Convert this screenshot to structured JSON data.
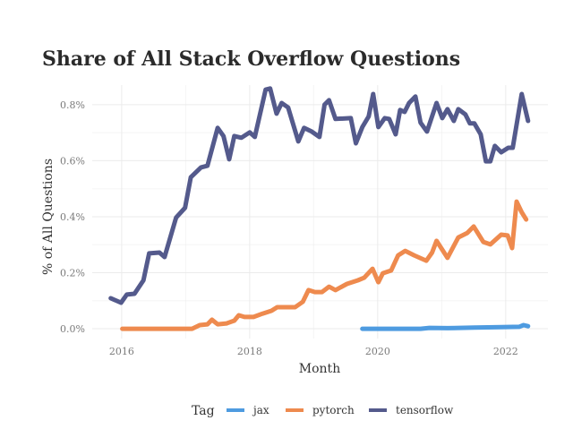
{
  "chart_data": {
    "type": "line",
    "title": "Share of All Stack Overflow Questions",
    "xlabel": "Month",
    "ylabel": "% of All Questions",
    "xlim": [
      2015.54,
      2022.66
    ],
    "ylim": [
      -0.035,
      0.87
    ],
    "x_ticks": [
      {
        "value": 2016,
        "label": "2016"
      },
      {
        "value": 2018,
        "label": "2018"
      },
      {
        "value": 2020,
        "label": "2020"
      },
      {
        "value": 2022,
        "label": "2022"
      }
    ],
    "y_ticks": [
      {
        "value": 0.0,
        "label": "0.0%"
      },
      {
        "value": 0.2,
        "label": "0.2%"
      },
      {
        "value": 0.4,
        "label": "0.4%"
      },
      {
        "value": 0.6,
        "label": "0.6%"
      },
      {
        "value": 0.8,
        "label": "0.8%"
      }
    ],
    "grid": true,
    "legend": {
      "title": "Tag",
      "placement": "bottom"
    },
    "series": [
      {
        "name": "jax",
        "color": "#4e9be0",
        "x": [
          2019.76,
          2020.67,
          2020.81,
          2021.09,
          2021.51,
          2021.93,
          2022.21,
          2022.28,
          2022.35
        ],
        "y": [
          0.0,
          0.0,
          0.003,
          0.002,
          0.004,
          0.006,
          0.007,
          0.013,
          0.009
        ]
      },
      {
        "name": "pytorch",
        "color": "#ee8a4e",
        "x": [
          2016.01,
          2017.1,
          2017.22,
          2017.34,
          2017.41,
          2017.5,
          2017.64,
          2017.76,
          2017.83,
          2017.92,
          2018.06,
          2018.2,
          2018.34,
          2018.43,
          2018.71,
          2018.83,
          2018.92,
          2019.02,
          2019.13,
          2019.24,
          2019.34,
          2019.52,
          2019.69,
          2019.79,
          2019.92,
          2020.01,
          2020.08,
          2020.21,
          2020.32,
          2020.43,
          2020.57,
          2020.76,
          2020.85,
          2020.92,
          2021.09,
          2021.26,
          2021.4,
          2021.5,
          2021.65,
          2021.76,
          2021.93,
          2022.03,
          2022.1,
          2022.17,
          2022.25,
          2022.32
        ],
        "y": [
          0.0,
          0.0,
          0.013,
          0.016,
          0.032,
          0.016,
          0.019,
          0.029,
          0.048,
          0.042,
          0.042,
          0.054,
          0.064,
          0.077,
          0.077,
          0.096,
          0.138,
          0.131,
          0.131,
          0.15,
          0.138,
          0.16,
          0.173,
          0.182,
          0.214,
          0.166,
          0.198,
          0.208,
          0.262,
          0.278,
          0.262,
          0.243,
          0.272,
          0.314,
          0.253,
          0.326,
          0.342,
          0.365,
          0.31,
          0.301,
          0.336,
          0.333,
          0.288,
          0.454,
          0.416,
          0.39
        ]
      },
      {
        "name": "tensorflow",
        "color": "#545a8c",
        "x": [
          2015.83,
          2015.99,
          2016.08,
          2016.2,
          2016.34,
          2016.43,
          2016.59,
          2016.67,
          2016.85,
          2016.99,
          2017.08,
          2017.24,
          2017.34,
          2017.5,
          2017.59,
          2017.68,
          2017.76,
          2017.87,
          2018.0,
          2018.08,
          2018.18,
          2018.25,
          2018.32,
          2018.42,
          2018.5,
          2018.6,
          2018.76,
          2018.85,
          2018.97,
          2019.09,
          2019.17,
          2019.24,
          2019.34,
          2019.58,
          2019.66,
          2019.76,
          2019.86,
          2019.93,
          2020.01,
          2020.11,
          2020.18,
          2020.28,
          2020.35,
          2020.42,
          2020.49,
          2020.59,
          2020.67,
          2020.77,
          2020.92,
          2021.01,
          2021.09,
          2021.19,
          2021.26,
          2021.37,
          2021.44,
          2021.51,
          2021.61,
          2021.69,
          2021.76,
          2021.83,
          2021.93,
          2022.04,
          2022.11,
          2022.25,
          2022.35
        ],
        "y": [
          0.109,
          0.093,
          0.122,
          0.125,
          0.173,
          0.269,
          0.272,
          0.256,
          0.397,
          0.432,
          0.541,
          0.576,
          0.582,
          0.717,
          0.688,
          0.605,
          0.688,
          0.682,
          0.701,
          0.685,
          0.784,
          0.854,
          0.858,
          0.768,
          0.806,
          0.79,
          0.669,
          0.717,
          0.704,
          0.685,
          0.8,
          0.816,
          0.749,
          0.752,
          0.662,
          0.72,
          0.758,
          0.838,
          0.72,
          0.752,
          0.749,
          0.694,
          0.781,
          0.774,
          0.806,
          0.829,
          0.736,
          0.704,
          0.806,
          0.752,
          0.784,
          0.742,
          0.784,
          0.765,
          0.733,
          0.733,
          0.694,
          0.598,
          0.598,
          0.653,
          0.63,
          0.646,
          0.646,
          0.838,
          0.742
        ]
      }
    ]
  }
}
